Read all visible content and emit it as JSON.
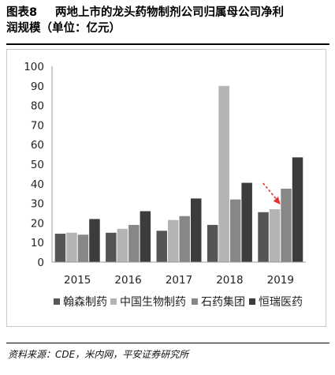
{
  "figure": {
    "label": "图表8",
    "title_line1": "两地上市的龙头药物制剂公司归属母公司净利",
    "title_line2": "润规模（单位：亿元）",
    "source": "资料来源：CDE，米内网，平安证券研究所"
  },
  "chart_data": {
    "type": "bar",
    "title": "",
    "xlabel": "",
    "ylabel": "",
    "categories": [
      "2015",
      "2016",
      "2017",
      "2018",
      "2019"
    ],
    "ylim": [
      0,
      100
    ],
    "yticks": [
      "0",
      "10",
      "20",
      "30",
      "40",
      "50",
      "60",
      "70",
      "80",
      "90",
      "100"
    ],
    "grid": false,
    "legend_position": "bottom",
    "series": [
      {
        "name": "翰森制药",
        "color": "#555555",
        "values": [
          14.5,
          15,
          16,
          19,
          25.5
        ]
      },
      {
        "name": "中国生物制药",
        "color": "#b4b4b4",
        "values": [
          15,
          17,
          21.5,
          90,
          27
        ]
      },
      {
        "name": "石药集团",
        "color": "#878787",
        "values": [
          14,
          19,
          23.5,
          32,
          37.5
        ]
      },
      {
        "name": "恒瑞医药",
        "color": "#3c3c3c",
        "values": [
          22,
          26,
          32.5,
          40.5,
          53.5
        ]
      }
    ],
    "annotation": {
      "type": "dashed-arrow",
      "color": "#e03030",
      "category": "2019"
    }
  }
}
